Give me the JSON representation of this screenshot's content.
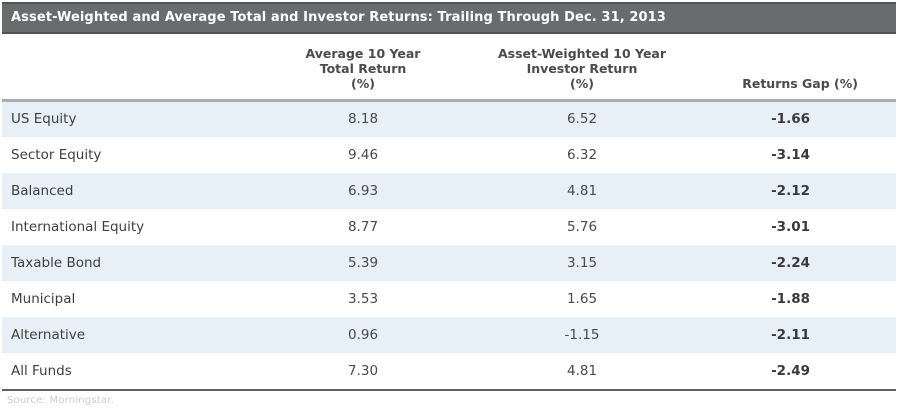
{
  "table": {
    "title": "Asset-Weighted and Average Total and Investor Returns: Trailing Through Dec. 31, 2013",
    "headers": {
      "avg_total_return_lines": [
        "Average 10 Year",
        "Total Return",
        "(%)"
      ],
      "investor_return_lines": [
        "Asset-Weighted 10 Year",
        "Investor Return",
        "(%)"
      ],
      "returns_gap": "Returns Gap (%)"
    },
    "rows": [
      {
        "category": "US Equity",
        "avg_total_return": "8.18",
        "investor_return": "6.52",
        "returns_gap": "-1.66"
      },
      {
        "category": "Sector Equity",
        "avg_total_return": "9.46",
        "investor_return": "6.32",
        "returns_gap": "-3.14"
      },
      {
        "category": "Balanced",
        "avg_total_return": "6.93",
        "investor_return": "4.81",
        "returns_gap": "-2.12"
      },
      {
        "category": "International Equity",
        "avg_total_return": "8.77",
        "investor_return": "5.76",
        "returns_gap": "-3.01"
      },
      {
        "category": "Taxable Bond",
        "avg_total_return": "5.39",
        "investor_return": "3.15",
        "returns_gap": "-2.24"
      },
      {
        "category": "Municipal",
        "avg_total_return": "3.53",
        "investor_return": "1.65",
        "returns_gap": "-1.88"
      },
      {
        "category": "Alternative",
        "avg_total_return": "0.96",
        "investor_return": "-1.15",
        "returns_gap": "-2.11"
      },
      {
        "category": "All Funds",
        "avg_total_return": "7.30",
        "investor_return": "4.81",
        "returns_gap": "-2.49"
      }
    ],
    "footnote": "Source: Morningstar."
  },
  "chart_data": {
    "type": "table",
    "title": "Asset-Weighted and Average Total and Investor Returns: Trailing Through Dec. 31, 2013",
    "categories": [
      "US Equity",
      "Sector Equity",
      "Balanced",
      "International Equity",
      "Taxable Bond",
      "Municipal",
      "Alternative",
      "All Funds"
    ],
    "series": [
      {
        "name": "Average 10 Year Total Return (%)",
        "values": [
          8.18,
          9.46,
          6.93,
          8.77,
          5.39,
          3.53,
          0.96,
          7.3
        ]
      },
      {
        "name": "Asset-Weighted 10 Year Investor Return (%)",
        "values": [
          6.52,
          6.32,
          4.81,
          5.76,
          3.15,
          1.65,
          -1.15,
          4.81
        ]
      },
      {
        "name": "Returns Gap (%)",
        "values": [
          -1.66,
          -3.14,
          -2.12,
          -3.01,
          -2.24,
          -1.88,
          -2.11,
          -2.49
        ]
      }
    ]
  },
  "colors": {
    "title_bar_bg": "#6a6b6d",
    "title_bar_text": "#ffffff",
    "alt_row_bg": "#e7eff7",
    "header_rule": "#a7aeb5",
    "bottom_rule": "#5f6062"
  }
}
